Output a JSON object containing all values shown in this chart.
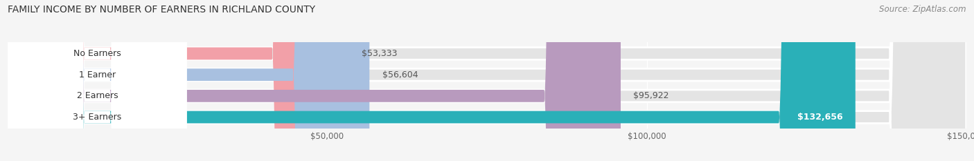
{
  "title": "FAMILY INCOME BY NUMBER OF EARNERS IN RICHLAND COUNTY",
  "source": "Source: ZipAtlas.com",
  "categories": [
    "No Earners",
    "1 Earner",
    "2 Earners",
    "3+ Earners"
  ],
  "values": [
    53333,
    56604,
    95922,
    132656
  ],
  "bar_colors": [
    "#f2a0a8",
    "#a8c0e0",
    "#b89abe",
    "#2ab0b8"
  ],
  "label_colors": [
    "#555555",
    "#555555",
    "#555555",
    "#ffffff"
  ],
  "value_labels": [
    "$53,333",
    "$56,604",
    "$95,922",
    "$132,656"
  ],
  "xmin": 0,
  "xmax": 150000,
  "xticks": [
    50000,
    100000,
    150000
  ],
  "xtick_labels": [
    "$50,000",
    "$100,000",
    "$150,000"
  ],
  "background_color": "#f5f5f5",
  "bar_bg_color": "#e4e4e4",
  "bar_bg_edge_color": "#ffffff",
  "title_fontsize": 10,
  "source_fontsize": 8.5,
  "label_fontsize": 9,
  "bar_height": 0.58
}
